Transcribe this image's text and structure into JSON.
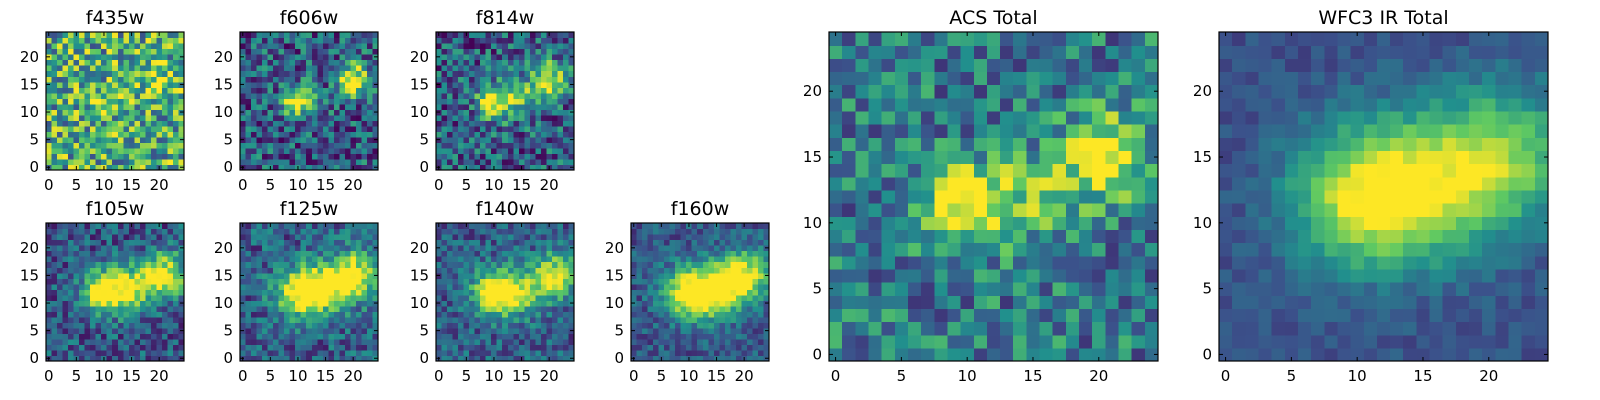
{
  "figure": {
    "colormap": "viridis",
    "colormap_stops": [
      "#440154",
      "#3b528b",
      "#21908d",
      "#5dc863",
      "#fde725"
    ]
  },
  "chart_data": [
    {
      "type": "heatmap",
      "title": "f435w",
      "grid": false,
      "legend": "none",
      "xlim": [
        -0.5,
        24.5
      ],
      "ylim": [
        -0.5,
        24.5
      ],
      "size": 25,
      "xticks": [
        "0",
        "5",
        "10",
        "15",
        "20"
      ],
      "yticks": [
        "0",
        "5",
        "10",
        "15",
        "20"
      ],
      "sources": [
        [
          9,
          12,
          0.1
        ],
        [
          20,
          16,
          0.25
        ]
      ],
      "sigma": 2.2,
      "base": 0.62,
      "noise": 0.38
    },
    {
      "type": "heatmap",
      "title": "f606w",
      "grid": false,
      "legend": "none",
      "xlim": [
        -0.5,
        24.5
      ],
      "ylim": [
        -0.5,
        24.5
      ],
      "size": 25,
      "xticks": [
        "0",
        "5",
        "10",
        "15",
        "20"
      ],
      "yticks": [
        "0",
        "5",
        "10",
        "15",
        "20"
      ],
      "sources": [
        [
          10,
          12,
          0.65
        ],
        [
          20,
          16,
          0.75
        ]
      ],
      "sigma": 2.0,
      "base": 0.3,
      "noise": 0.3
    },
    {
      "type": "heatmap",
      "title": "f814w",
      "grid": false,
      "legend": "none",
      "xlim": [
        -0.5,
        24.5
      ],
      "ylim": [
        -0.5,
        24.5
      ],
      "size": 25,
      "xticks": [
        "0",
        "5",
        "10",
        "15",
        "20"
      ],
      "yticks": [
        "0",
        "5",
        "10",
        "15",
        "20"
      ],
      "sources": [
        [
          10,
          12,
          0.7
        ],
        [
          20,
          16,
          0.7
        ],
        [
          15,
          13,
          0.35
        ]
      ],
      "sigma": 2.2,
      "base": 0.3,
      "noise": 0.3
    },
    {
      "type": "heatmap",
      "title": "f105w",
      "grid": false,
      "legend": "none",
      "xlim": [
        -0.5,
        24.5
      ],
      "ylim": [
        -0.5,
        24.5
      ],
      "size": 25,
      "xticks": [
        "0",
        "5",
        "10",
        "15",
        "20"
      ],
      "yticks": [
        "0",
        "5",
        "10",
        "15",
        "20"
      ],
      "sources": [
        [
          10,
          12,
          0.75
        ],
        [
          21,
          15,
          0.75
        ],
        [
          15,
          13,
          0.55
        ]
      ],
      "sigma": 2.8,
      "base": 0.28,
      "noise": 0.22
    },
    {
      "type": "heatmap",
      "title": "f125w",
      "grid": false,
      "legend": "none",
      "xlim": [
        -0.5,
        24.5
      ],
      "ylim": [
        -0.5,
        24.5
      ],
      "size": 25,
      "xticks": [
        "0",
        "5",
        "10",
        "15",
        "20"
      ],
      "yticks": [
        "0",
        "5",
        "10",
        "15",
        "20"
      ],
      "sources": [
        [
          10,
          12,
          0.75
        ],
        [
          20,
          15,
          0.72
        ],
        [
          15,
          13,
          0.6
        ]
      ],
      "sigma": 3.0,
      "base": 0.3,
      "noise": 0.22
    },
    {
      "type": "heatmap",
      "title": "f140w",
      "grid": false,
      "legend": "none",
      "xlim": [
        -0.5,
        24.5
      ],
      "ylim": [
        -0.5,
        24.5
      ],
      "size": 25,
      "xticks": [
        "0",
        "5",
        "10",
        "15",
        "20"
      ],
      "yticks": [
        "0",
        "5",
        "10",
        "15",
        "20"
      ],
      "sources": [
        [
          10,
          12,
          0.8
        ],
        [
          21,
          15,
          0.65
        ],
        [
          15,
          12,
          0.45
        ]
      ],
      "sigma": 2.8,
      "base": 0.3,
      "noise": 0.2
    },
    {
      "type": "heatmap",
      "title": "f160w",
      "grid": false,
      "legend": "none",
      "xlim": [
        -0.5,
        24.5
      ],
      "ylim": [
        -0.5,
        24.5
      ],
      "size": 25,
      "xticks": [
        "0",
        "5",
        "10",
        "15",
        "20"
      ],
      "yticks": [
        "0",
        "5",
        "10",
        "15",
        "20"
      ],
      "sources": [
        [
          10,
          12,
          0.75
        ],
        [
          20,
          15,
          0.7
        ],
        [
          15,
          12,
          0.65
        ]
      ],
      "sigma": 3.2,
      "base": 0.28,
      "noise": 0.16
    },
    {
      "type": "heatmap",
      "title": "ACS Total",
      "grid": false,
      "legend": "none",
      "xlim": [
        -0.5,
        24.5
      ],
      "ylim": [
        -0.5,
        24.5
      ],
      "size": 25,
      "xticks": [
        "0",
        "5",
        "10",
        "15",
        "20"
      ],
      "yticks": [
        "0",
        "5",
        "10",
        "15",
        "20"
      ],
      "sources": [
        [
          10,
          11.5,
          0.6
        ],
        [
          20.5,
          15,
          0.7
        ],
        [
          15,
          12,
          0.3
        ]
      ],
      "sigma": 2.2,
      "base": 0.42,
      "noise": 0.26
    },
    {
      "type": "heatmap",
      "title": "WFC3 IR Total",
      "grid": false,
      "legend": "none",
      "xlim": [
        -0.5,
        24.5
      ],
      "ylim": [
        -0.5,
        24.5
      ],
      "size": 25,
      "xticks": [
        "0",
        "5",
        "10",
        "15",
        "20"
      ],
      "yticks": [
        "0",
        "5",
        "10",
        "15",
        "20"
      ],
      "sources": [
        [
          10,
          12,
          0.6
        ],
        [
          21,
          15,
          0.55
        ],
        [
          15,
          12.5,
          0.45
        ]
      ],
      "sigma": 3.8,
      "base": 0.25,
      "noise": 0.08
    }
  ]
}
